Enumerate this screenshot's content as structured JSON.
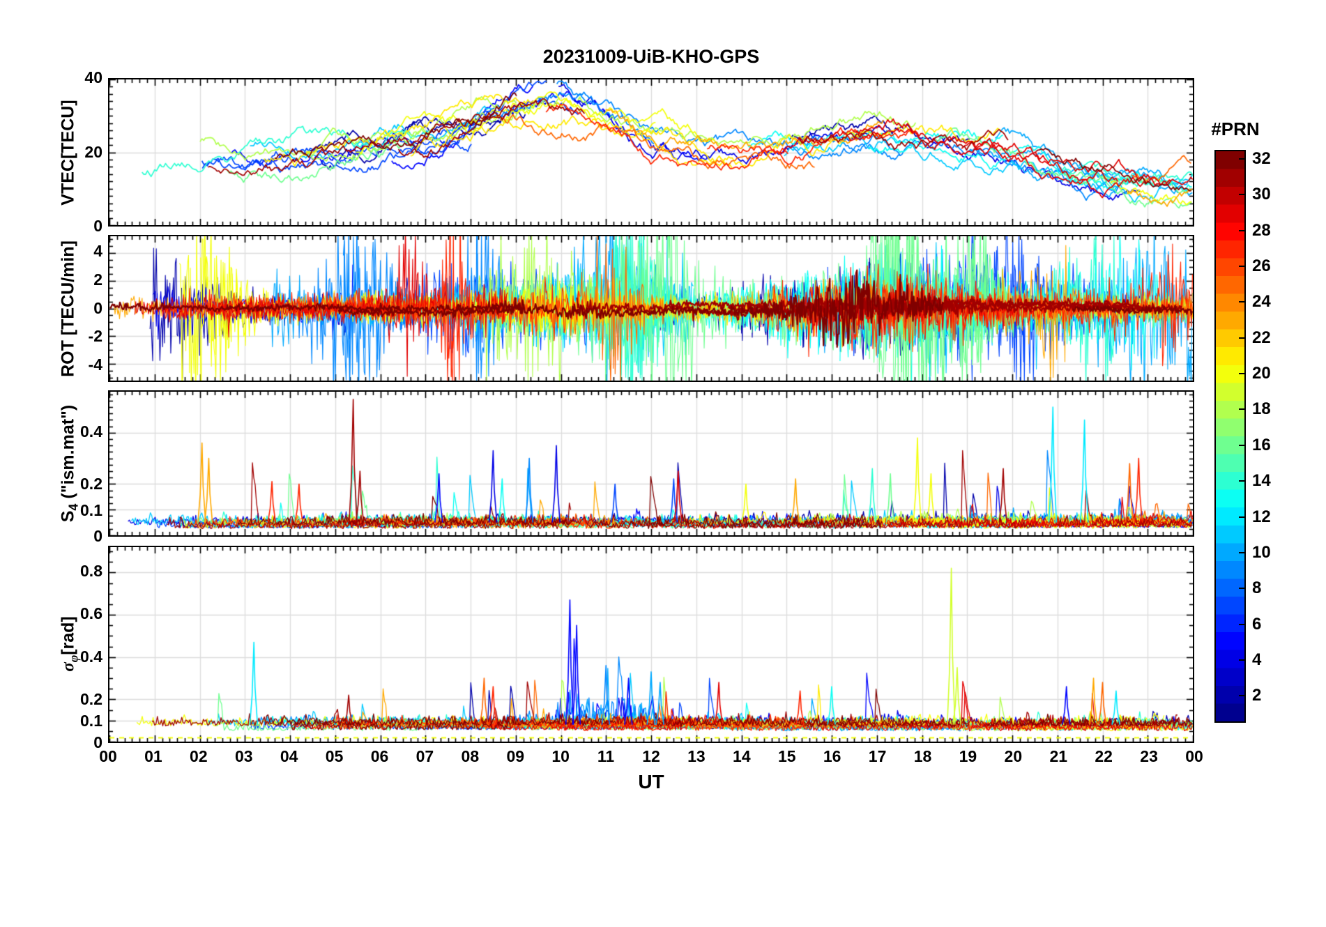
{
  "chart_data": {
    "type": "line",
    "title": "20231009-UiB-KHO-GPS",
    "xlabel": "UT",
    "x_ticks": [
      "00",
      "01",
      "02",
      "03",
      "04",
      "05",
      "06",
      "07",
      "08",
      "09",
      "10",
      "11",
      "12",
      "13",
      "14",
      "15",
      "16",
      "17",
      "18",
      "19",
      "20",
      "21",
      "22",
      "23",
      "00"
    ],
    "x_range_hours": [
      0,
      24
    ],
    "n_satellites": 32,
    "colorbar": {
      "label": "#PRN",
      "ticks": [
        2,
        4,
        6,
        8,
        10,
        12,
        14,
        16,
        18,
        20,
        22,
        24,
        26,
        28,
        30,
        32
      ],
      "range": [
        1,
        32
      ],
      "colormap": "jet",
      "jet_stops": [
        {
          "pos": 0.0,
          "color": "#00008F"
        },
        {
          "pos": 0.125,
          "color": "#0000FF"
        },
        {
          "pos": 0.375,
          "color": "#00FFFF"
        },
        {
          "pos": 0.5,
          "color": "#80FF80"
        },
        {
          "pos": 0.625,
          "color": "#FFFF00"
        },
        {
          "pos": 0.875,
          "color": "#FF0000"
        },
        {
          "pos": 1.0,
          "color": "#800000"
        }
      ]
    },
    "panels": [
      {
        "id": "vtec",
        "ylabel_parts": [
          "VTEC[TECU]",
          "",
          ""
        ],
        "ylim": [
          0,
          40
        ],
        "yticks": [
          0,
          20,
          40
        ],
        "y_minor_step": 2,
        "summary": {
          "description": "Vertical TEC per GPS satellite; diurnal rise to midday maximum then evening decline",
          "mean_by_hour": [
            15,
            16,
            18,
            17,
            18,
            19,
            21,
            24,
            27,
            31,
            33,
            29,
            23,
            21,
            20,
            21,
            23,
            24,
            23,
            22,
            21,
            16,
            13,
            11,
            11
          ],
          "peak": {
            "ut": 9.8,
            "value": 37
          },
          "typical_spread_tecu": 8,
          "end_of_day_min": 8
        }
      },
      {
        "id": "rot",
        "ylabel_parts": [
          "ROT [TECU/min]",
          "",
          ""
        ],
        "ylim": [
          -5.2,
          5.2
        ],
        "yticks": [
          -4,
          -2,
          0,
          2,
          4
        ],
        "y_minor_step": 0.5,
        "summary": {
          "description": "Rate of TEC change; noise band about 0 with strong bursts clipped at panel edges",
          "typical_range": [
            -2,
            2
          ],
          "extremes_clipped_at": [
            -5,
            5
          ],
          "high_activity_ut": [
            [
              7.5,
              13
            ],
            [
              15,
              19.5
            ]
          ],
          "quiet_dark_red_trace_range": [
            -0.4,
            0.4
          ]
        }
      },
      {
        "id": "s4",
        "ylabel_parts": [
          "S",
          "4",
          " (\"ism.mat\")"
        ],
        "ylim": [
          0,
          0.56
        ],
        "yticks": [
          0,
          0.1,
          0.2,
          0.4
        ],
        "y_minor_step": 0.025,
        "summary": {
          "description": "Amplitude scintillation index; baseline ~0.05 with sporadic spikes",
          "baseline": 0.05
        },
        "events": [
          {
            "ut": 2.05,
            "value": 0.36,
            "prn": 23
          },
          {
            "ut": 2.2,
            "value": 0.3,
            "prn": 23
          },
          {
            "ut": 3.6,
            "value": 0.21,
            "prn": 27
          },
          {
            "ut": 4.2,
            "value": 0.2,
            "prn": 27
          },
          {
            "ut": 5.4,
            "value": 0.53,
            "prn": 31
          },
          {
            "ut": 5.55,
            "value": 0.25,
            "prn": 31
          },
          {
            "ut": 7.3,
            "value": 0.24,
            "prn": 5
          },
          {
            "ut": 8.5,
            "value": 0.33,
            "prn": 4
          },
          {
            "ut": 8.7,
            "value": 0.22,
            "prn": 13
          },
          {
            "ut": 9.3,
            "value": 0.3,
            "prn": 9
          },
          {
            "ut": 9.9,
            "value": 0.35,
            "prn": 4
          },
          {
            "ut": 11.2,
            "value": 0.2,
            "prn": 7
          },
          {
            "ut": 12.5,
            "value": 0.22,
            "prn": 7
          },
          {
            "ut": 12.6,
            "value": 0.25,
            "prn": 29
          },
          {
            "ut": 14.1,
            "value": 0.2,
            "prn": 20
          },
          {
            "ut": 15.2,
            "value": 0.22,
            "prn": 23
          },
          {
            "ut": 16.9,
            "value": 0.26,
            "prn": 14
          },
          {
            "ut": 17.3,
            "value": 0.24,
            "prn": 16
          },
          {
            "ut": 17.9,
            "value": 0.38,
            "prn": 20
          },
          {
            "ut": 18.2,
            "value": 0.24,
            "prn": 20
          },
          {
            "ut": 19.8,
            "value": 0.26,
            "prn": 31
          },
          {
            "ut": 20.9,
            "value": 0.5,
            "prn": 12
          },
          {
            "ut": 21.6,
            "value": 0.45,
            "prn": 12
          },
          {
            "ut": 22.6,
            "value": 0.28,
            "prn": 25
          },
          {
            "ut": 22.8,
            "value": 0.3,
            "prn": 27
          }
        ]
      },
      {
        "id": "sigma_phi",
        "ylabel_parts": [
          "σ",
          "φ",
          "[rad]"
        ],
        "ylim": [
          0,
          0.92
        ],
        "yticks": [
          0,
          0.1,
          0.2,
          0.4,
          0.6,
          0.8
        ],
        "y_minor_step": 0.05,
        "summary": {
          "description": "Phase scintillation; baseline ~0.08 rad, blue-satellite activity cluster 10-12.5 UT",
          "baseline": 0.08
        },
        "flat_line": {
          "value": 0.02,
          "prn": 20,
          "dash": true
        },
        "events": [
          {
            "ut": 3.2,
            "value": 0.47,
            "prn": 12
          },
          {
            "ut": 5.3,
            "value": 0.22,
            "prn": 31
          },
          {
            "ut": 8.3,
            "value": 0.3,
            "prn": 25
          },
          {
            "ut": 8.5,
            "value": 0.26,
            "prn": 27
          },
          {
            "ut": 10.2,
            "value": 0.67,
            "prn": 5
          },
          {
            "ut": 10.35,
            "value": 0.55,
            "prn": 5
          },
          {
            "ut": 11.0,
            "value": 0.36,
            "prn": 9
          },
          {
            "ut": 11.5,
            "value": 0.3,
            "prn": 5
          },
          {
            "ut": 12.0,
            "value": 0.33,
            "prn": 10
          },
          {
            "ut": 12.2,
            "value": 0.28,
            "prn": 10
          },
          {
            "ut": 13.5,
            "value": 0.28,
            "prn": 29
          },
          {
            "ut": 15.3,
            "value": 0.24,
            "prn": 27
          },
          {
            "ut": 16.0,
            "value": 0.26,
            "prn": 13
          },
          {
            "ut": 18.65,
            "value": 0.82,
            "prn": 19
          },
          {
            "ut": 18.78,
            "value": 0.35,
            "prn": 19
          },
          {
            "ut": 21.2,
            "value": 0.26,
            "prn": 5
          },
          {
            "ut": 21.8,
            "value": 0.3,
            "prn": 23
          },
          {
            "ut": 22.0,
            "value": 0.28,
            "prn": 25
          },
          {
            "ut": 22.3,
            "value": 0.24,
            "prn": 12
          }
        ]
      }
    ],
    "render": {
      "seed": 20231009,
      "prns": [
        2,
        4,
        5,
        7,
        9,
        10,
        11,
        13,
        14,
        16,
        18,
        20,
        21,
        23,
        25,
        27,
        29,
        31,
        32
      ],
      "x_minor_per_hour": 6,
      "vtec": {
        "step": 0.04,
        "offset_spread": 7,
        "walk": 0.9,
        "damp": 0.96,
        "walk_gain": 2.2,
        "clip": [
          3,
          39.5
        ],
        "blue_boost": {
          "prns": [
            4,
            5,
            7,
            9
          ],
          "amp": 5,
          "center": 10,
          "width": 1.6
        }
      },
      "rot": {
        "step": 0.02,
        "amp_base": 0.35,
        "amp_rand": 0.3,
        "calm_prns": [
          31,
          32
        ],
        "calm_amp": 0.13,
        "envelope": [
          {
            "center": 17,
            "width": 2.2,
            "amp": 1.6
          },
          {
            "center": 10,
            "width": 1.5,
            "amp": 0.8
          }
        ],
        "spike_prob": 0.006,
        "spike_gain": 2.5
      },
      "s4": {
        "step": 0.03,
        "base_min": 0.025,
        "base_rand": 0.02,
        "noise": 0.018,
        "spike_prob": 0.005,
        "spike_min": 0.04,
        "spike_pow": 2.5,
        "spike_gain": 0.25
      },
      "sigma": {
        "step": 0.03,
        "base_min": 0.05,
        "base_rand": 0.03,
        "noise": 0.02,
        "spike_prob": 0.004,
        "spike_min": 0.05,
        "spike_pow": 2.5,
        "spike_gain": 0.2,
        "cluster": {
          "prns": [
            5,
            9,
            10
          ],
          "center": 10.8,
          "width": 1.2,
          "amp": 3
        }
      }
    }
  }
}
